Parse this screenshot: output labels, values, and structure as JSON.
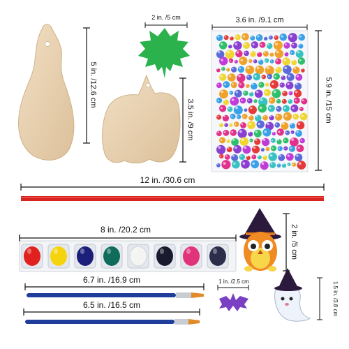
{
  "dimensions": {
    "gourd_height": "5 in. /12.6 cm",
    "leaf_width": "2 in. /5 cm",
    "pumpkin_height": "3.5 in. /9 cm",
    "gem_sheet_width": "3.6 in. /9.1 cm",
    "gem_sheet_height": "5.9 in. /15 cm",
    "ribbon_length": "12 in. /30.6 cm",
    "paint_strip_width": "8 in. /20.2 cm",
    "owl_height": "2 in. /5 cm",
    "brush_long_length": "6.7 in. /16.9 cm",
    "brush_short_length": "6.5 in. /16.5 cm",
    "bat_width": "1 in. /2.5 cm",
    "ghost_height": "1.5 in. /3.8 cm"
  },
  "colors": {
    "wood": "#e9d3b4",
    "leaf": "#2bb24c",
    "ribbon": "#d8231f",
    "brush_handle": "#1f3d9a",
    "paints": [
      "#e0211d",
      "#f5d40d",
      "#1b1f7a",
      "#0f6b5a",
      "#f4f4f2",
      "#1a1a2e",
      "#e0337a",
      "#2a2e4a"
    ]
  }
}
